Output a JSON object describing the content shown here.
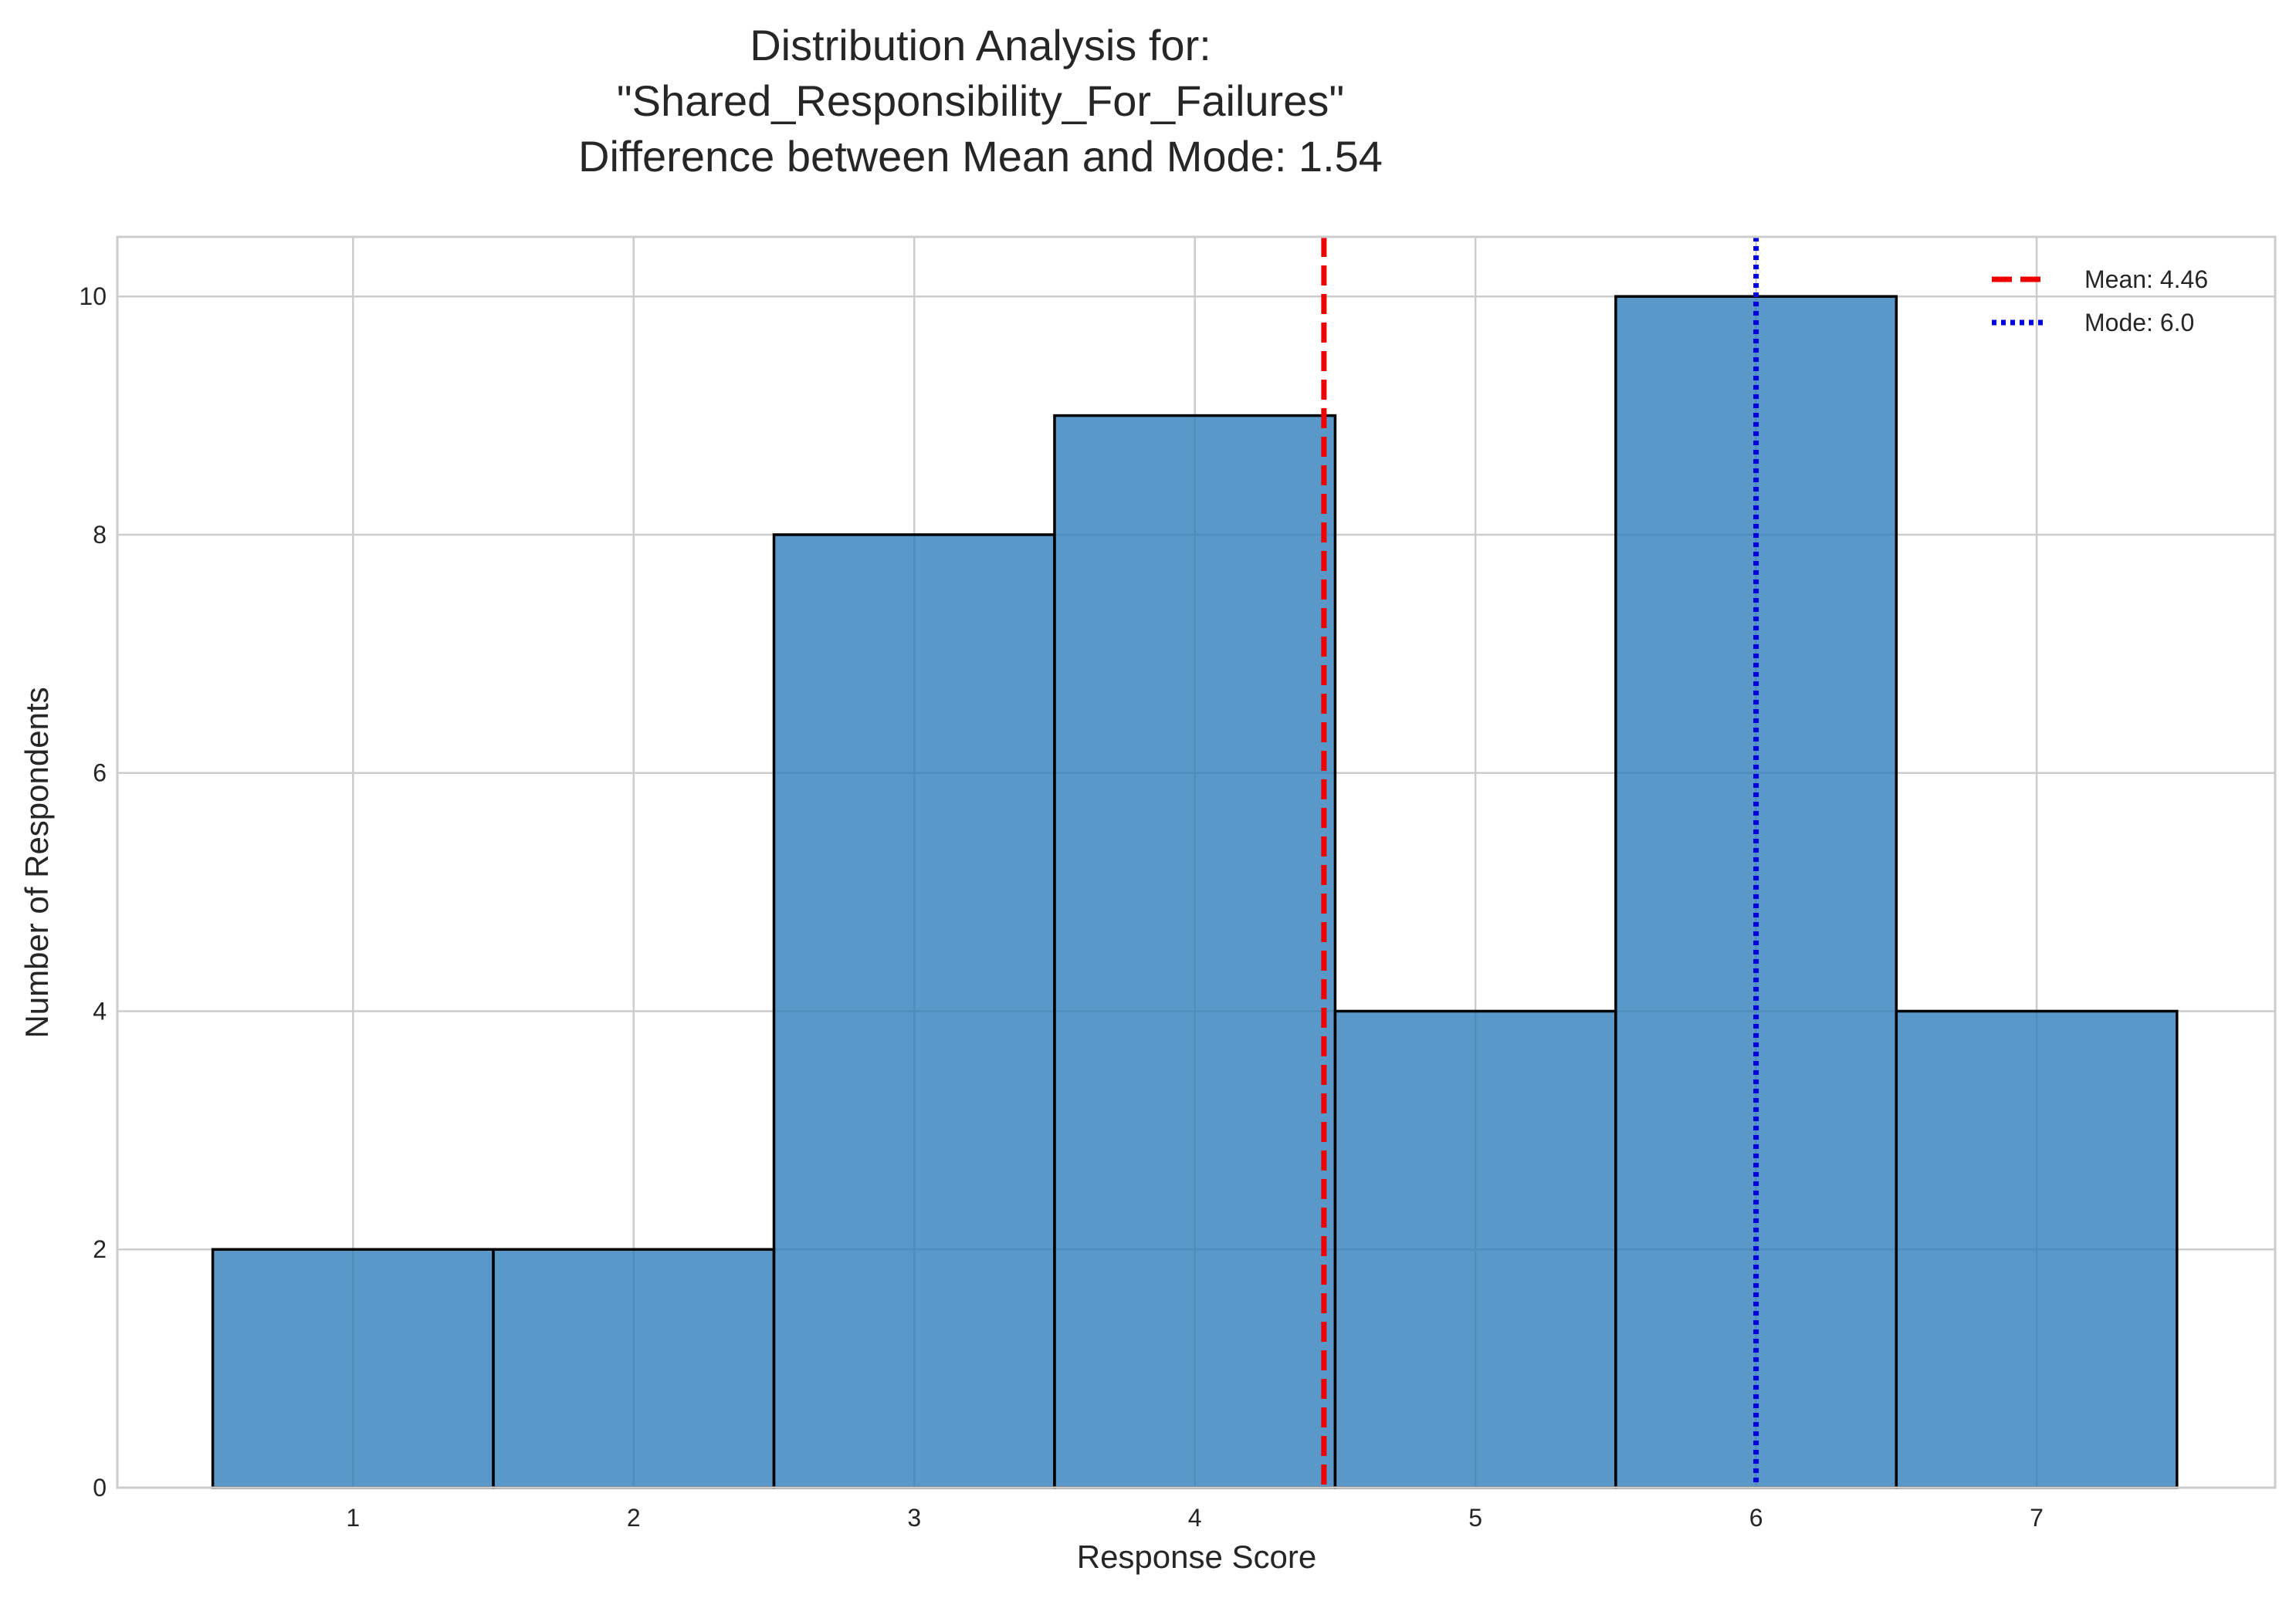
{
  "chart_data": {
    "type": "bar",
    "title_lines": [
      "Distribution Analysis for:",
      "\"Shared_Responsibility_For_Failures\"",
      "Difference between Mean and Mode: 1.54"
    ],
    "xlabel": "Response Score",
    "ylabel": "Number of Respondents",
    "categories": [
      "1",
      "2",
      "3",
      "4",
      "5",
      "6",
      "7"
    ],
    "x": [
      1,
      2,
      3,
      4,
      5,
      6,
      7
    ],
    "values": [
      2,
      2,
      8,
      9,
      4,
      10,
      4
    ],
    "xlim": [
      0.16,
      7.85
    ],
    "ylim": [
      0,
      10.5
    ],
    "xticks": [
      1,
      2,
      3,
      4,
      5,
      6,
      7
    ],
    "yticks": [
      0,
      2,
      4,
      6,
      8,
      10
    ],
    "grid": true,
    "bar_color": "#2b7bba",
    "legend_position": "top-right",
    "reference_lines": [
      {
        "label": "Mean: 4.46",
        "x": 4.46,
        "color": "#ee0000",
        "style": "dashed"
      },
      {
        "label": "Mode: 6.0",
        "x": 6.0,
        "color": "#0000dd",
        "style": "dotted"
      }
    ]
  }
}
